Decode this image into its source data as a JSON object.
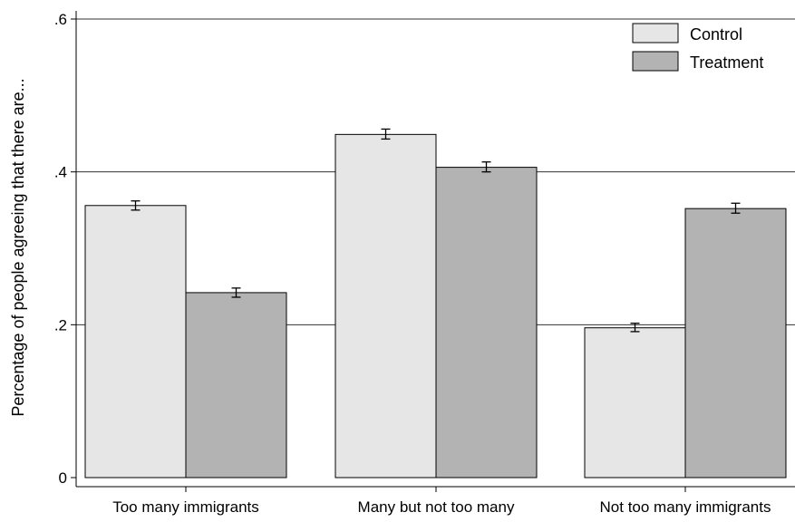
{
  "chart_data": {
    "type": "bar",
    "title": "",
    "xlabel": "",
    "ylabel": "Percentage of people agreeing that there are...",
    "categories": [
      "Too many immigrants",
      "Many but not too many",
      "Not too many immigrants"
    ],
    "series": [
      {
        "name": "Control",
        "color": "#e6e6e6",
        "values": [
          0.356,
          0.449,
          0.196
        ],
        "err_low": [
          0.35,
          0.443,
          0.191
        ],
        "err_high": [
          0.362,
          0.456,
          0.202
        ]
      },
      {
        "name": "Treatment",
        "color": "#b3b3b3",
        "values": [
          0.242,
          0.406,
          0.352
        ],
        "err_low": [
          0.236,
          0.4,
          0.346
        ],
        "err_high": [
          0.248,
          0.413,
          0.359
        ]
      }
    ],
    "ylim": [
      0,
      0.62
    ],
    "yticks": [
      0,
      0.2,
      0.4,
      0.6
    ],
    "ytick_labels": [
      "0",
      ".2",
      ".4",
      ".6"
    ],
    "grid": "horizontal",
    "legend": {
      "position": "top-right",
      "labels": [
        "Control",
        "Treatment"
      ]
    }
  }
}
